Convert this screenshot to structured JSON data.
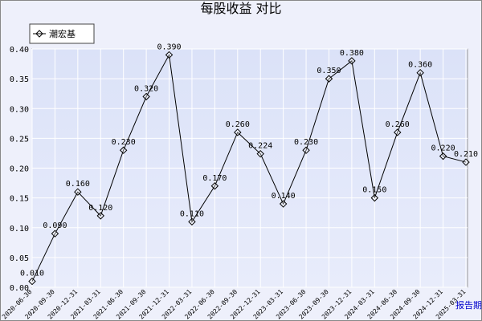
{
  "chart_data": {
    "type": "line",
    "title": "每股收益 对比",
    "x_label": "报告期",
    "categories": [
      "2020-06-30",
      "2020-09-30",
      "2020-12-31",
      "2021-03-31",
      "2021-06-30",
      "2021-09-30",
      "2021-12-31",
      "2022-03-31",
      "2022-06-30",
      "2022-09-30",
      "2022-12-31",
      "2023-03-31",
      "2023-06-30",
      "2023-09-30",
      "2023-12-31",
      "2024-03-31",
      "2024-06-30",
      "2024-09-30",
      "2024-12-31",
      "2025-03-31"
    ],
    "series": [
      {
        "name": "潮宏基",
        "color": "#000000",
        "values": [
          0.01,
          0.09,
          0.16,
          0.12,
          0.23,
          0.32,
          0.39,
          0.11,
          0.17,
          0.26,
          0.224,
          0.14,
          0.23,
          0.35,
          0.38,
          0.15,
          0.26,
          0.36,
          0.22,
          0.21
        ],
        "value_labels": [
          "0.010",
          "0.090",
          "0.160",
          "0.120",
          "0.230",
          "0.320",
          "0.390",
          "0.110",
          "0.170",
          "0.260",
          "0.224",
          "0.140",
          "0.230",
          "0.350",
          "0.380",
          "0.150",
          "0.260",
          "0.360",
          "0.220",
          "0.210"
        ]
      }
    ],
    "ylim": [
      0,
      0.4
    ],
    "yticks": [
      {
        "value": 0,
        "label": "0.00"
      },
      {
        "value": 0.05,
        "label": "0.05"
      },
      {
        "value": 0.1,
        "label": "0.10"
      },
      {
        "value": 0.15,
        "label": "0.15"
      },
      {
        "value": 0.2,
        "label": "0.20"
      },
      {
        "value": 0.25,
        "label": "0.25"
      },
      {
        "value": 0.3,
        "label": "0.30"
      },
      {
        "value": 0.35,
        "label": "0.35"
      },
      {
        "value": 0.4,
        "label": "0.40"
      }
    ],
    "grid": true,
    "legend": "top-left"
  }
}
